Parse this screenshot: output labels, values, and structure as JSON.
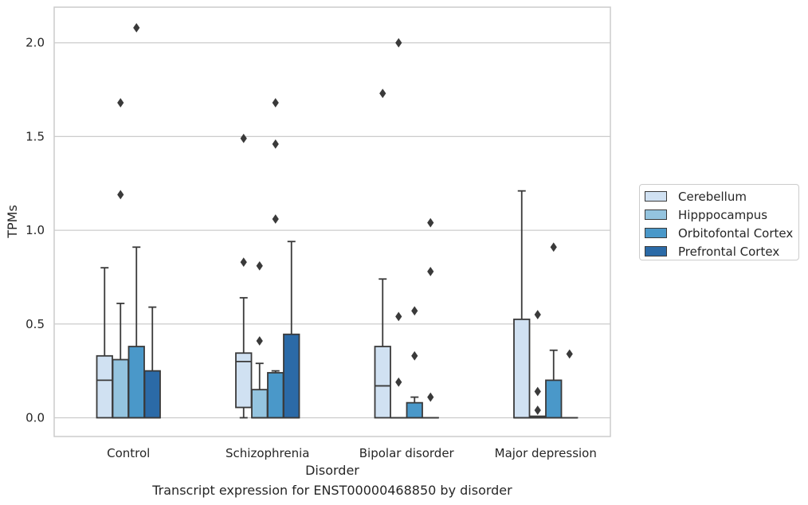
{
  "chart_data": {
    "type": "boxplot",
    "title": "",
    "caption": "Transcript expression for ENST00000468850 by disorder",
    "xlabel": "Disorder",
    "ylabel": "TPMs",
    "ylim": [
      -0.1,
      2.19
    ],
    "yticks": [
      "0.0",
      "0.5",
      "1.0",
      "1.5",
      "2.0"
    ],
    "ytick_values": [
      0.0,
      0.5,
      1.0,
      1.5,
      2.0
    ],
    "grid": "horizontal",
    "legend_position": "right",
    "categories": [
      "Control",
      "Schizophrenia",
      "Bipolar disorder",
      "Major depression"
    ],
    "series": [
      {
        "name": "Cerebellum",
        "color": "#d0e1f2",
        "boxes": [
          {
            "min": 0.0,
            "q1": 0.0,
            "median": 0.2,
            "q3": 0.33,
            "max": 0.8,
            "outliers": []
          },
          {
            "min": 0.0,
            "q1": 0.055,
            "median": 0.3,
            "q3": 0.345,
            "max": 0.64,
            "outliers": [
              0.83,
              1.49
            ]
          },
          {
            "min": 0.0,
            "q1": 0.0,
            "median": 0.17,
            "q3": 0.38,
            "max": 0.74,
            "outliers": [
              1.73
            ]
          },
          {
            "min": 0.0,
            "q1": 0.0,
            "median": 0.0,
            "q3": 0.525,
            "max": 1.21,
            "outliers": []
          }
        ]
      },
      {
        "name": "Hipppocampus",
        "color": "#94c4df",
        "boxes": [
          {
            "min": 0.0,
            "q1": 0.0,
            "median": 0.0,
            "q3": 0.31,
            "max": 0.61,
            "outliers": [
              1.19,
              1.68
            ]
          },
          {
            "min": 0.0,
            "q1": 0.0,
            "median": 0.0,
            "q3": 0.15,
            "max": 0.29,
            "outliers": [
              0.41,
              0.81
            ]
          },
          {
            "min": 0.0,
            "q1": 0.0,
            "median": 0.0,
            "q3": 0.0,
            "max": 0.0,
            "outliers": [
              0.19,
              0.54,
              2.0
            ]
          },
          {
            "min": 0.0,
            "q1": 0.0,
            "median": 0.0,
            "q3": 0.008,
            "max": 0.008,
            "outliers": [
              0.04,
              0.14,
              0.55
            ]
          }
        ]
      },
      {
        "name": "Orbitofontal Cortex",
        "color": "#4a98c9",
        "boxes": [
          {
            "min": 0.0,
            "q1": 0.0,
            "median": 0.0,
            "q3": 0.38,
            "max": 0.91,
            "outliers": [
              2.08
            ]
          },
          {
            "min": 0.0,
            "q1": 0.0,
            "median": 0.0,
            "q3": 0.24,
            "max": 0.25,
            "outliers": [
              1.06,
              1.46,
              1.68
            ]
          },
          {
            "min": 0.0,
            "q1": 0.0,
            "median": 0.0,
            "q3": 0.08,
            "max": 0.11,
            "outliers": [
              0.33,
              0.57
            ]
          },
          {
            "min": 0.0,
            "q1": 0.0,
            "median": 0.0,
            "q3": 0.2,
            "max": 0.36,
            "outliers": [
              0.91
            ]
          }
        ]
      },
      {
        "name": "Prefrontal Cortex",
        "color": "#2b6aa7",
        "boxes": [
          {
            "min": 0.0,
            "q1": 0.0,
            "median": 0.0,
            "q3": 0.25,
            "max": 0.59,
            "outliers": []
          },
          {
            "min": 0.0,
            "q1": 0.0,
            "median": 0.0,
            "q3": 0.445,
            "max": 0.94,
            "outliers": []
          },
          {
            "min": 0.0,
            "q1": 0.0,
            "median": 0.0,
            "q3": 0.0,
            "max": 0.0,
            "outliers": [
              0.11,
              0.78,
              1.04
            ]
          },
          {
            "min": 0.0,
            "q1": 0.0,
            "median": 0.0,
            "q3": 0.0,
            "max": 0.0,
            "outliers": [
              0.34
            ]
          }
        ]
      }
    ]
  }
}
